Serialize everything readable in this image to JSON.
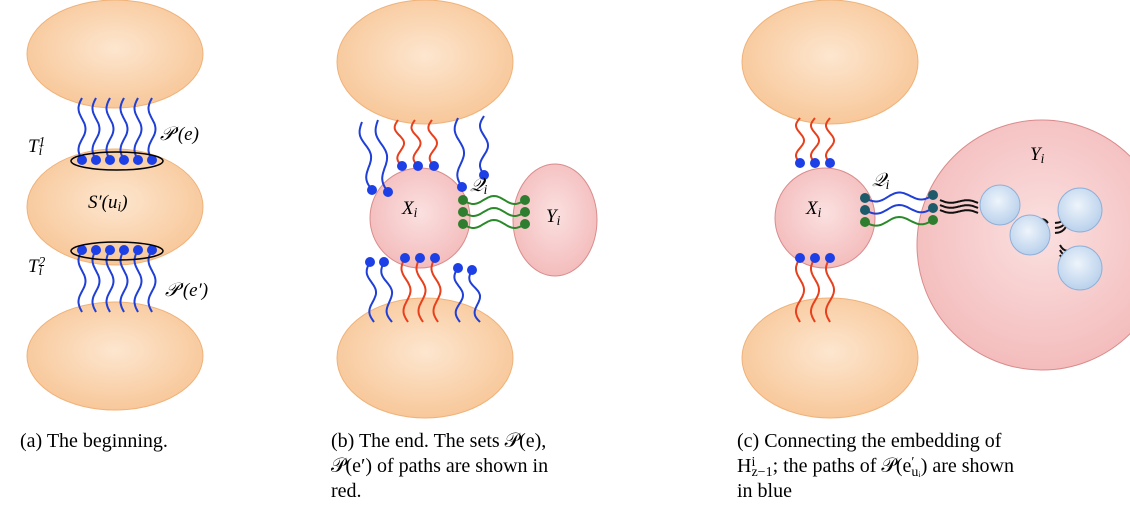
{
  "panels": [
    {
      "labels": [
        {
          "parts": [
            "T",
            {
              "sub": "i",
              "sup": "1"
            }
          ]
        },
        {
          "parts": [
            "𝒫′(e)"
          ]
        },
        {
          "parts": [
            "S′(u",
            {
              "sub": "i"
            },
            ")"
          ]
        },
        {
          "parts": [
            "T",
            {
              "sub": "i",
              "sup": "2"
            }
          ]
        },
        {
          "parts": [
            "𝒫′(e′)"
          ]
        }
      ],
      "caption": [
        [
          "(a) The beginning."
        ]
      ]
    },
    {
      "labels": [
        {
          "parts": [
            "X",
            {
              "sub": "i"
            }
          ]
        },
        {
          "parts": [
            "𝒬",
            {
              "sub": "i"
            }
          ]
        },
        {
          "parts": [
            "Y",
            {
              "sub": "i"
            }
          ]
        }
      ],
      "caption": [
        [
          "(b) The end. The sets 𝒫(e),"
        ],
        [
          "𝒫(e′) of paths are shown in"
        ],
        [
          "red."
        ]
      ]
    },
    {
      "labels": [
        {
          "parts": [
            "X",
            {
              "sub": "i"
            }
          ]
        },
        {
          "parts": [
            "𝒬",
            {
              "sub": "i"
            }
          ]
        },
        {
          "parts": [
            "Y",
            {
              "sub": "i"
            }
          ]
        }
      ],
      "caption": [
        [
          "(c) Connecting the embedding of"
        ],
        [
          "H",
          {
            "sub": "z−1",
            "sup": "i"
          },
          "; the paths of 𝒫(e",
          {
            "sub": "uᵢ",
            "sup": "′"
          },
          ") are shown"
        ],
        [
          "in blue"
        ]
      ]
    }
  ]
}
